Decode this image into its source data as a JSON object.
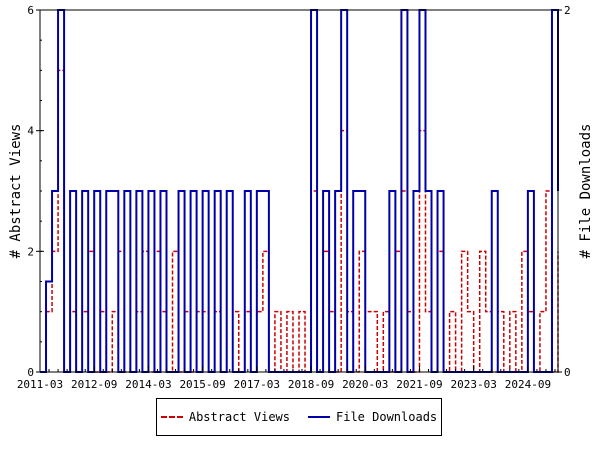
{
  "chart_data": {
    "type": "line",
    "title": "",
    "xlabel": "",
    "ylabel": "# Abstract Views",
    "ylabel_right": "# File Downloads",
    "x_tick_labels": [
      "2011-03",
      "2012-09",
      "2014-03",
      "2015-09",
      "2017-03",
      "2018-09",
      "2020-03",
      "2021-09",
      "2023-03",
      "2024-09"
    ],
    "x_range": [
      "2011-03",
      "2025-07"
    ],
    "ylim_left": [
      0,
      6
    ],
    "ylim_right": [
      0,
      2
    ],
    "y_ticks_left": [
      0,
      2,
      4,
      6
    ],
    "y_ticks_right": [
      0,
      2
    ],
    "grid": false,
    "legend_position": "bottom-center",
    "series": [
      {
        "name": "Abstract Views",
        "axis": "left",
        "color": "#cc0000",
        "style": "dashed",
        "x": [
          "2011-03",
          "2011-05",
          "2011-07",
          "2011-09",
          "2011-11",
          "2012-01",
          "2012-03",
          "2012-05",
          "2012-07",
          "2012-09",
          "2012-11",
          "2013-01",
          "2013-03",
          "2013-05",
          "2013-07",
          "2013-09",
          "2013-11",
          "2014-01",
          "2014-03",
          "2014-05",
          "2014-07",
          "2014-09",
          "2014-11",
          "2015-01",
          "2015-03",
          "2015-05",
          "2015-07",
          "2015-09",
          "2015-11",
          "2016-01",
          "2016-03",
          "2016-05",
          "2016-07",
          "2016-09",
          "2016-11",
          "2017-01",
          "2017-03",
          "2017-05",
          "2017-07",
          "2017-09",
          "2017-11",
          "2018-01",
          "2018-03",
          "2018-05",
          "2018-07",
          "2018-09",
          "2018-11",
          "2019-01",
          "2019-03",
          "2019-05",
          "2019-07",
          "2019-09",
          "2019-11",
          "2020-01",
          "2020-03",
          "2020-05",
          "2020-07",
          "2020-09",
          "2020-11",
          "2021-01",
          "2021-03",
          "2021-05",
          "2021-07",
          "2021-09",
          "2021-11",
          "2022-01",
          "2022-03",
          "2022-05",
          "2022-07",
          "2022-09",
          "2022-11",
          "2023-01",
          "2023-03",
          "2023-05",
          "2023-07",
          "2023-09",
          "2023-11",
          "2024-01",
          "2024-03",
          "2024-05",
          "2024-07",
          "2024-09",
          "2024-11",
          "2025-01",
          "2025-03",
          "2025-05",
          "2025-07"
        ],
        "values": [
          0,
          1,
          2,
          5,
          0,
          1,
          0,
          1,
          2,
          0,
          1,
          0,
          1,
          2,
          0,
          0,
          1,
          2,
          0,
          2,
          1,
          0,
          2,
          0,
          1,
          0,
          1,
          1,
          0,
          1,
          0,
          3,
          1,
          0,
          1,
          0,
          1,
          2,
          0,
          1,
          0,
          1,
          0,
          1,
          0,
          3,
          0,
          2,
          1,
          0,
          4,
          1,
          0,
          2,
          1,
          1,
          0,
          1,
          0,
          2,
          3,
          1,
          0,
          4,
          1,
          0,
          2,
          0,
          1,
          0,
          2,
          1,
          0,
          2,
          1,
          0,
          1,
          0,
          1,
          0,
          2,
          1,
          0,
          1,
          3,
          0,
          2
        ]
      },
      {
        "name": "File Downloads",
        "axis": "right",
        "color": "#0000aa",
        "style": "solid",
        "x": [
          "2011-03",
          "2011-05",
          "2011-07",
          "2011-09",
          "2011-11",
          "2012-01",
          "2012-03",
          "2012-05",
          "2012-07",
          "2012-09",
          "2012-11",
          "2013-01",
          "2013-03",
          "2013-05",
          "2013-07",
          "2013-09",
          "2013-11",
          "2014-01",
          "2014-03",
          "2014-05",
          "2014-07",
          "2014-09",
          "2014-11",
          "2015-01",
          "2015-03",
          "2015-05",
          "2015-07",
          "2015-09",
          "2015-11",
          "2016-01",
          "2016-03",
          "2016-05",
          "2016-07",
          "2016-09",
          "2016-11",
          "2017-01",
          "2017-03",
          "2017-05",
          "2017-07",
          "2017-09",
          "2017-11",
          "2018-01",
          "2018-03",
          "2018-05",
          "2018-07",
          "2018-09",
          "2018-11",
          "2019-01",
          "2019-03",
          "2019-05",
          "2019-07",
          "2019-09",
          "2019-11",
          "2020-01",
          "2020-03",
          "2020-05",
          "2020-07",
          "2020-09",
          "2020-11",
          "2021-01",
          "2021-03",
          "2021-05",
          "2021-07",
          "2021-09",
          "2021-11",
          "2022-01",
          "2022-03",
          "2022-05",
          "2022-07",
          "2022-09",
          "2022-11",
          "2023-01",
          "2023-03",
          "2023-05",
          "2023-07",
          "2023-09",
          "2023-11",
          "2024-01",
          "2024-03",
          "2024-05",
          "2024-07",
          "2024-09",
          "2024-11",
          "2025-01",
          "2025-03",
          "2025-05",
          "2025-07"
        ],
        "values": [
          0,
          0.5,
          1,
          2,
          0,
          1,
          0,
          1,
          0,
          1,
          0,
          1,
          1,
          0,
          1,
          0,
          1,
          0,
          1,
          0,
          1,
          0,
          0,
          1,
          0,
          1,
          0,
          1,
          0,
          1,
          0,
          1,
          0,
          0,
          1,
          0,
          1,
          1,
          0,
          0,
          0,
          0,
          0,
          0,
          0,
          2,
          0,
          1,
          0,
          1,
          2,
          0,
          1,
          1,
          0,
          0,
          0,
          0,
          1,
          0,
          2,
          0,
          1,
          2,
          1,
          0,
          1,
          0,
          0,
          0,
          0,
          0,
          0,
          0,
          0,
          1,
          0,
          0,
          0,
          0,
          0,
          1,
          0,
          0,
          0,
          2,
          1
        ]
      }
    ]
  }
}
